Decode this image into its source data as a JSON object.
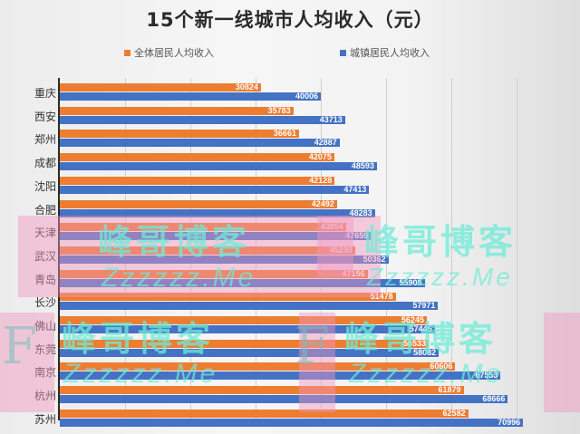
{
  "chart_data": {
    "type": "bar",
    "orientation": "horizontal",
    "title": "15个新一线城市人均收入（元）",
    "xlabel": "",
    "ylabel": "",
    "categories": [
      "重庆",
      "西安",
      "郑州",
      "成都",
      "沈阳",
      "合肥",
      "天津",
      "武汉",
      "青岛",
      "长沙",
      "佛山",
      "东莞",
      "南京",
      "杭州",
      "苏州"
    ],
    "series": [
      {
        "name": "全体居民人均收入",
        "color": "#ED7D31",
        "values": [
          30824,
          35783,
          36661,
          42075,
          42128,
          42492,
          43854,
          45230,
          47156,
          51478,
          56245,
          56533,
          60606,
          61879,
          62582
        ]
      },
      {
        "name": "城镇居民人均收入",
        "color": "#4472C4",
        "values": [
          40006,
          43713,
          42887,
          48593,
          47413,
          48283,
          47659,
          50362,
          55905,
          57971,
          57445,
          58082,
          67553,
          68666,
          70996
        ]
      }
    ],
    "xlim": [
      0,
      80000
    ],
    "grid": true,
    "legend_position": "top",
    "data_labels": true
  },
  "legend": [
    {
      "label": "全体居民人均收入",
      "color": "#ED7D31"
    },
    {
      "label": "城镇居民人均收入",
      "color": "#4472C4"
    }
  ],
  "watermarks": {
    "cn": "峰哥博客",
    "en": "Zzzzzz.Me",
    "letter": "F"
  }
}
